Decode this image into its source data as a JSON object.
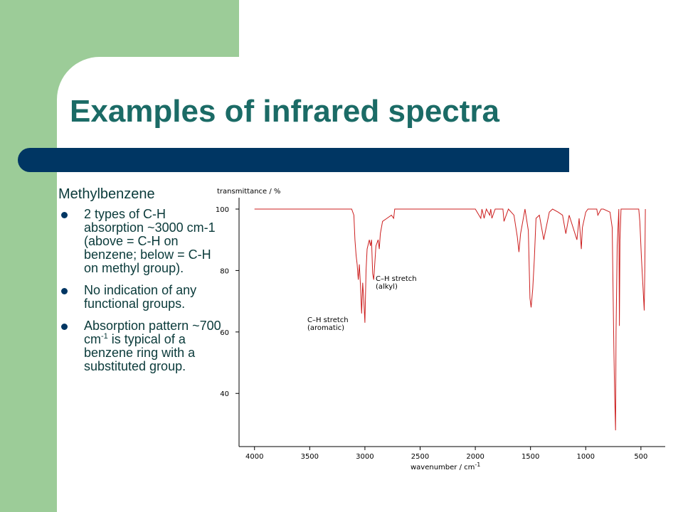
{
  "slide": {
    "title": "Examples of infrared spectra",
    "heading": "Methylbenzene",
    "bullets": [
      "2 types of C-H absorption ~3000 cm-1 (above = C-H on benzene; below = C-H on methyl group).",
      "No indication of any functional groups.",
      [
        "Absorption pattern ~700 cm",
        "-1",
        " is typical of a benzene ring with a substituted group."
      ]
    ]
  },
  "chart_data": {
    "type": "line",
    "y_label": "transmittance / %",
    "x_label": [
      "wavenumber / cm",
      "-1"
    ],
    "xlim": [
      4140,
      280
    ],
    "ylim": [
      22.7,
      103.7
    ],
    "xticks": [
      4000,
      3500,
      3000,
      2500,
      2000,
      1500,
      1000,
      500
    ],
    "yticks": [
      40,
      60,
      80,
      100
    ],
    "annotations": [
      {
        "lines": [
          "C–H stretch",
          "(alkyl)"
        ]
      },
      {
        "lines": [
          "C–H stretch",
          "(aromatic)"
        ]
      }
    ],
    "series": [
      {
        "color": "#cc1f1f",
        "x": [
          4000,
          3120,
          3100,
          3090,
          3080,
          3070,
          3060,
          3050,
          3040,
          3030,
          3020,
          3010,
          3000,
          2990,
          2980,
          2960,
          2950,
          2940,
          2930,
          2920,
          2900,
          2880,
          2870,
          2860,
          2840,
          2800,
          2760,
          2740,
          2730,
          2700,
          2000,
          1950,
          1940,
          1920,
          1900,
          1870,
          1860,
          1850,
          1820,
          1800,
          1750,
          1740,
          1720,
          1700,
          1650,
          1620,
          1605,
          1590,
          1570,
          1550,
          1520,
          1505,
          1495,
          1480,
          1465,
          1450,
          1420,
          1380,
          1370,
          1330,
          1300,
          1250,
          1210,
          1180,
          1150,
          1080,
          1060,
          1040,
          1030,
          1000,
          980,
          900,
          890,
          860,
          840,
          780,
          760,
          745,
          738,
          730,
          725,
          715,
          700,
          695,
          690,
          680,
          520,
          510,
          495,
          470,
          465,
          460
        ],
        "values": [
          100,
          100,
          98,
          90,
          85,
          82,
          77,
          82,
          75,
          66,
          76,
          70,
          63,
          80,
          87,
          90,
          88,
          90,
          79,
          77,
          88,
          90,
          87,
          92,
          96,
          97,
          98,
          97,
          100,
          100,
          100,
          97,
          100,
          97,
          100,
          98,
          100,
          97,
          100,
          100,
          100,
          96,
          98,
          100,
          98,
          91,
          86,
          92,
          96,
          100,
          93,
          71,
          68,
          74,
          84,
          97,
          98,
          90,
          92,
          99,
          100,
          99,
          98,
          92,
          98,
          90,
          97,
          87,
          94,
          99,
          100,
          100,
          98,
          100,
          100,
          99,
          94,
          55,
          40,
          28,
          60,
          88,
          100,
          62,
          90,
          100,
          100,
          96,
          84,
          67,
          80,
          100
        ]
      }
    ]
  }
}
